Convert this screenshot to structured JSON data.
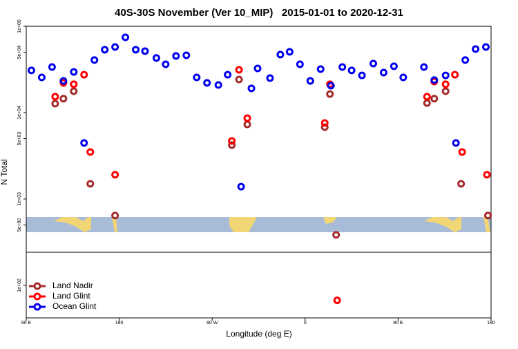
{
  "chart_data": {
    "type": "scatter",
    "title": "40S-30S November (Ver 10_MIP)   2015-01-01 to 2020-12-31",
    "x_label": "Longitude (deg E)",
    "y_label": "N Total",
    "log_y": true,
    "legend": "bottom-left",
    "xlim": [
      90,
      540
    ],
    "ylim": [
      42,
      100000
    ],
    "xticks": [
      {
        "value": 90,
        "label": "90 E"
      },
      180,
      {
        "value": 270,
        "label": "90 W"
      },
      {
        "value": 360,
        "label": "0"
      },
      {
        "value": 450,
        "label": "90 E"
      },
      {
        "value": 540,
        "label": "180"
      }
    ],
    "yticks": [
      {
        "value": 100,
        "label": "1e+02"
      },
      {
        "value": 500,
        "label": "5e+02"
      },
      {
        "value": 1000,
        "label": "1e+03"
      },
      {
        "value": 5000,
        "label": "5e+03"
      },
      {
        "value": 10000,
        "label": "1e+04"
      },
      {
        "value": 50000,
        "label": "5e+04"
      },
      {
        "value": 100000,
        "label": "1e+05"
      }
    ],
    "series": [
      {
        "name": "Land Nadir",
        "color": "#a52a2a",
        "x": [
          118,
          126,
          136,
          152,
          176,
          289,
          296,
          304,
          379,
          384,
          390,
          478,
          485,
          496,
          511,
          537
        ],
        "values": [
          12700,
          14500,
          17700,
          1500,
          643,
          4210,
          24200,
          7310,
          6790,
          16400,
          384,
          12900,
          14500,
          17700,
          1500,
          643
        ]
      },
      {
        "name": "Land Glint",
        "color": "#ff0000",
        "x": [
          118,
          126,
          136,
          146,
          152,
          176,
          289,
          296,
          304,
          379,
          384,
          391,
          478,
          485,
          496,
          505,
          512,
          536
        ],
        "values": [
          15300,
          22100,
          21300,
          27500,
          3500,
          1910,
          4700,
          31300,
          8630,
          7590,
          21300,
          67,
          15300,
          22900,
          21300,
          27500,
          3500,
          1910
        ]
      },
      {
        "name": "Ocean Glint",
        "color": "#0000ee",
        "x": [
          95,
          105,
          115,
          126,
          136,
          146,
          156,
          166,
          176,
          186,
          196,
          205,
          216,
          225,
          235,
          245,
          255,
          265,
          276,
          285,
          298,
          308,
          314,
          326,
          336,
          345,
          355,
          365,
          375,
          385,
          396,
          405,
          415,
          426,
          436,
          446,
          455,
          475,
          485,
          496,
          506,
          515,
          525,
          535
        ],
        "values": [
          30800,
          25600,
          33700,
          23300,
          29600,
          4450,
          40600,
          53500,
          57500,
          74500,
          53500,
          51500,
          42900,
          36300,
          45300,
          46100,
          25600,
          22100,
          20900,
          27500,
          1390,
          19100,
          32500,
          25100,
          47000,
          50600,
          36300,
          23300,
          31900,
          20500,
          33700,
          30800,
          27000,
          37000,
          29100,
          34400,
          25600,
          33700,
          23800,
          27000,
          4450,
          40600,
          54500,
          57500
        ]
      }
    ]
  }
}
